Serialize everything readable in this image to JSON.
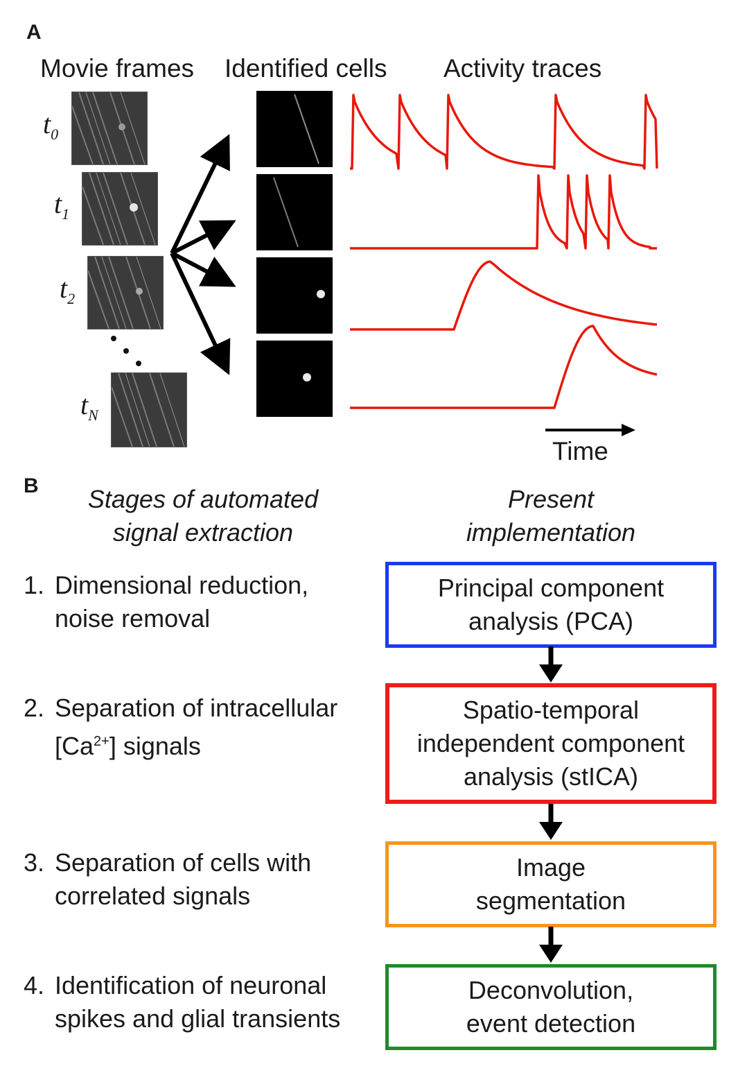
{
  "panel_a": {
    "letter": "A",
    "headers": {
      "movie_frames": "Movie frames",
      "identified_cells": "Identified cells",
      "activity_traces": "Activity traces"
    },
    "time_labels": [
      {
        "base": "t",
        "sub": "0"
      },
      {
        "base": "t",
        "sub": "1"
      },
      {
        "base": "t",
        "sub": "2"
      },
      {
        "base": "t",
        "sub": "N"
      }
    ],
    "time_axis_label": "Time",
    "trace_color": "#e8180c"
  },
  "panel_b": {
    "letter": "B",
    "left_header": {
      "line1": "Stages of automated",
      "line2": "signal extraction"
    },
    "right_header": {
      "line1": "Present",
      "line2": "implementation"
    },
    "stages": [
      {
        "num": "1.",
        "line1": "Dimensional reduction,",
        "line2": "noise removal"
      },
      {
        "num": "2.",
        "line1": "Separation of intracellular",
        "line2_pre": "[Ca",
        "line2_sup": "2+",
        "line2_post": "] signals"
      },
      {
        "num": "3.",
        "line1": "Separation of cells with",
        "line2": "correlated signals"
      },
      {
        "num": "4.",
        "line1": "Identification of neuronal",
        "line2": "spikes and glial transients"
      }
    ],
    "boxes": [
      {
        "lines": [
          "Principal component",
          "analysis (PCA)"
        ],
        "color": "#1a3bf0"
      },
      {
        "lines": [
          "Spatio-temporal",
          "independent component",
          "analysis (stICA)"
        ],
        "color": "#ee1c1c"
      },
      {
        "lines": [
          "Image",
          "segmentation"
        ],
        "color": "#f7941d"
      },
      {
        "lines": [
          "Deconvolution,",
          "event detection"
        ],
        "color": "#1f8a2c"
      }
    ]
  }
}
